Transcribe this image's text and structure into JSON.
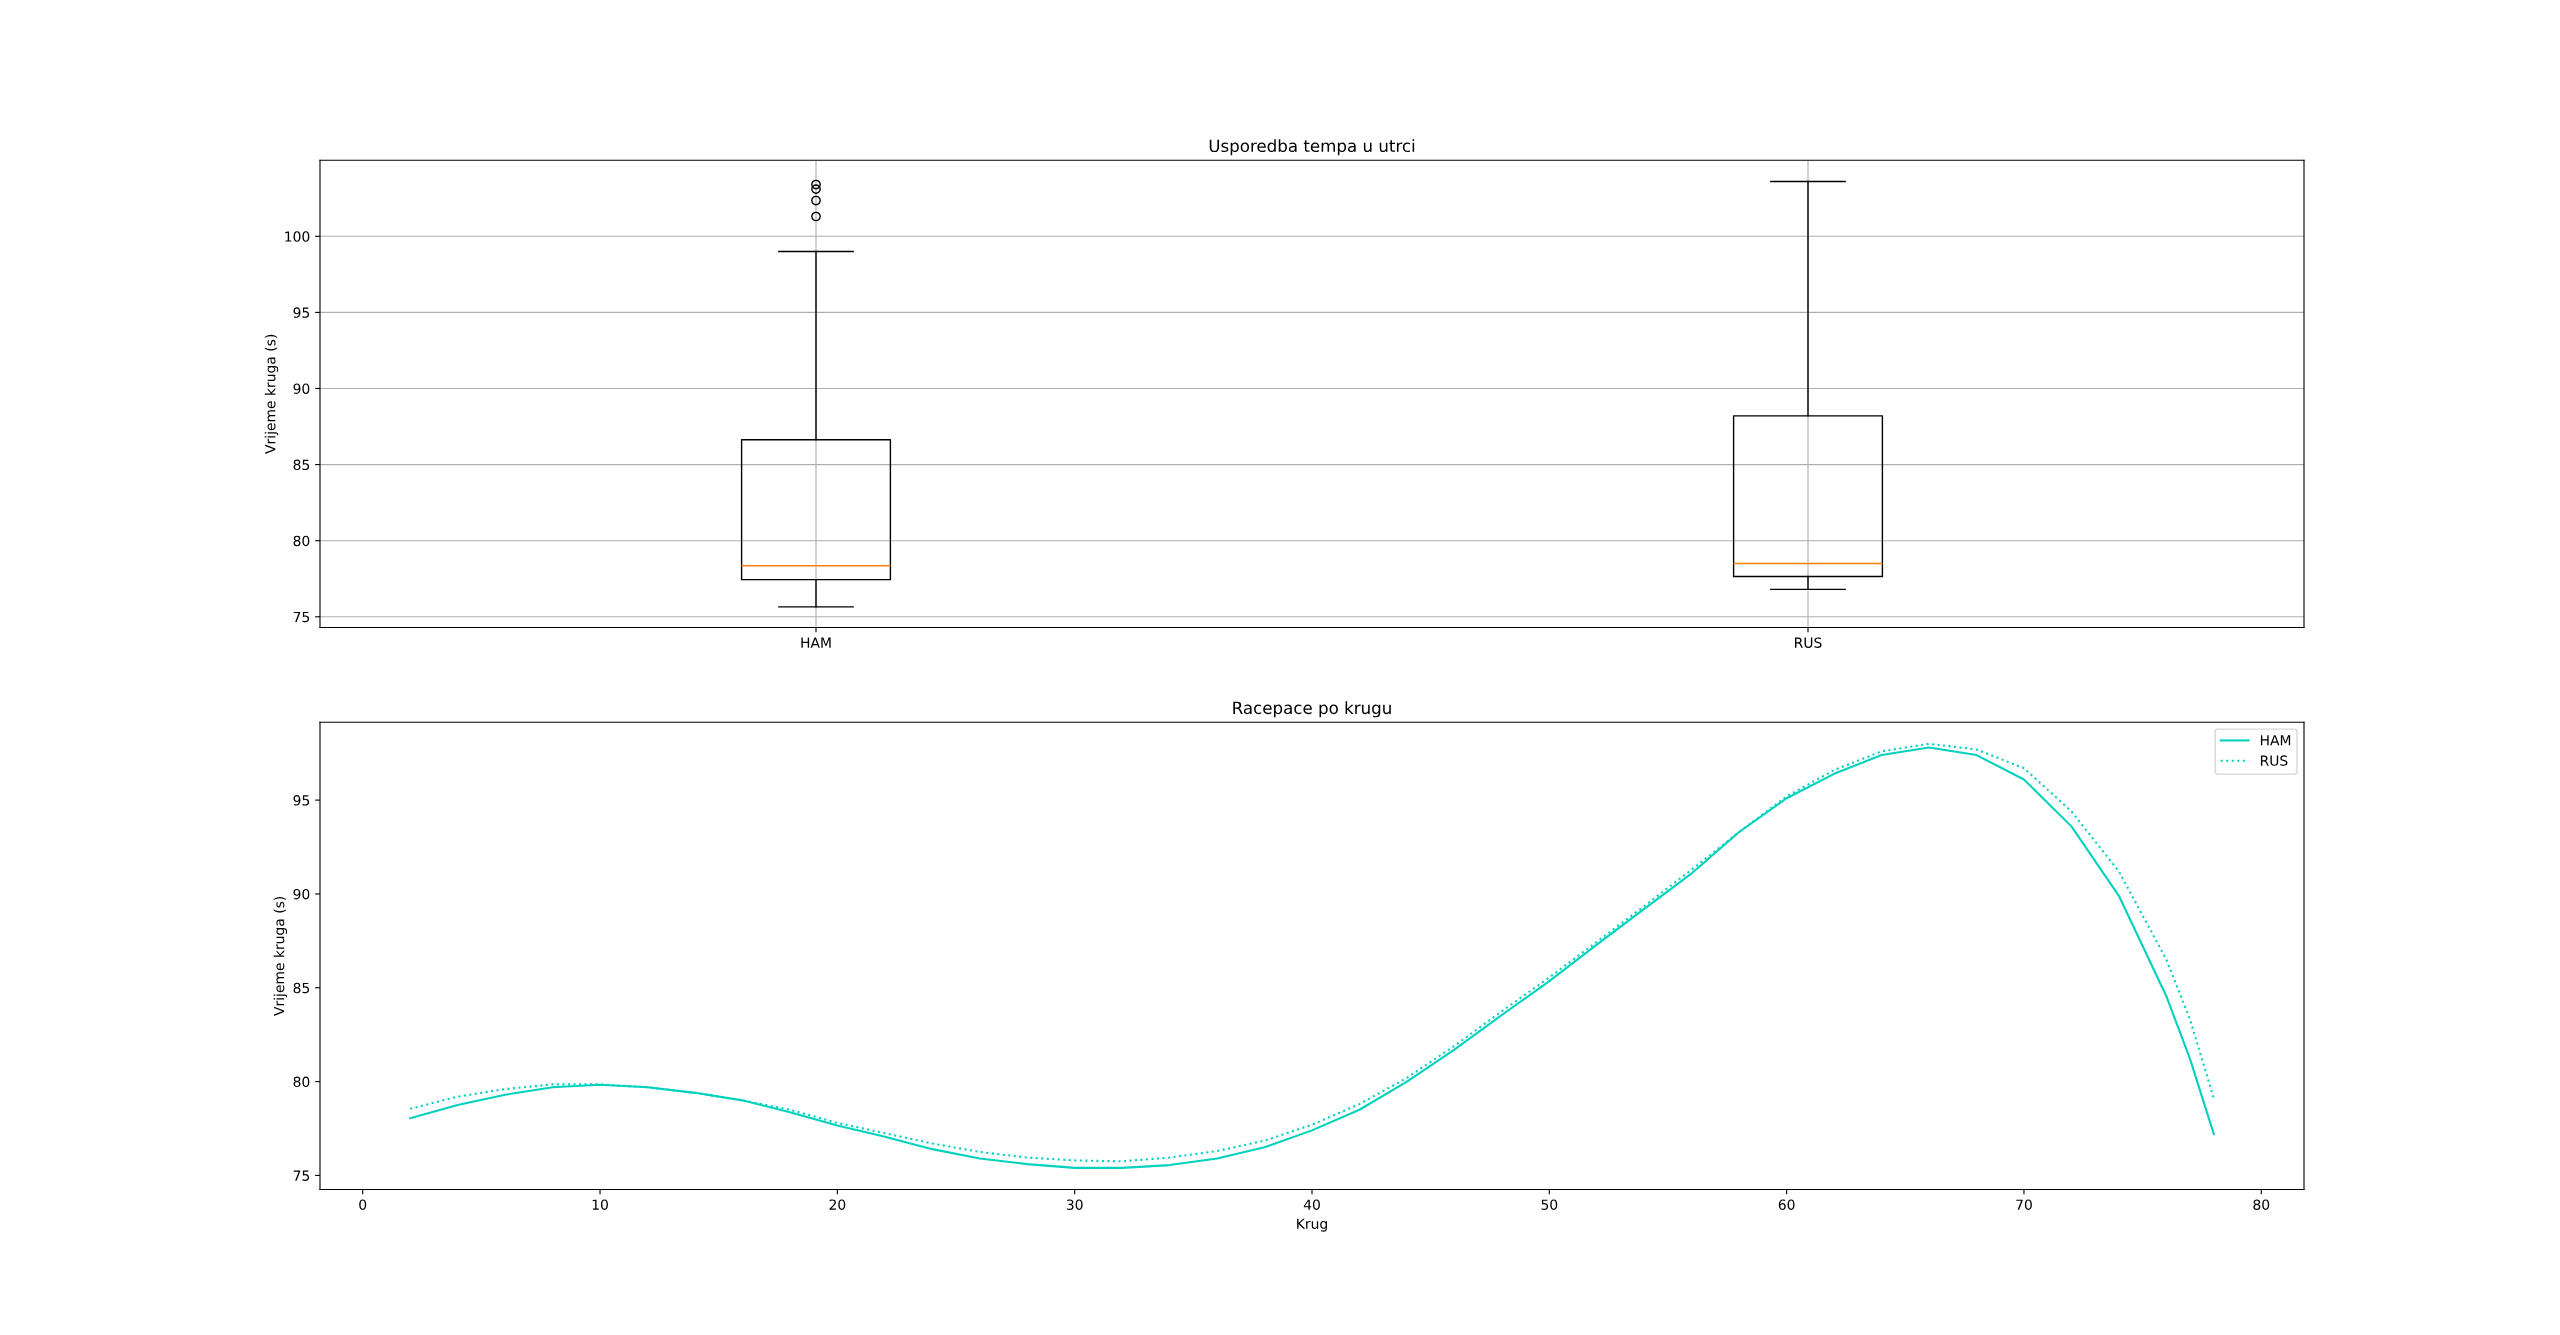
{
  "chart_data": [
    {
      "type": "box",
      "title": "Usporedba tempa u utrci",
      "ylabel": "Vrijeme kruga (s)",
      "categories": [
        "HAM",
        "RUS"
      ],
      "boxes": [
        {
          "low": 75.65,
          "q1": 77.44,
          "median": 78.35,
          "q3": 86.63,
          "high": 99.0,
          "outliers": [
            101.3,
            102.35,
            103.1,
            103.4
          ]
        },
        {
          "low": 76.8,
          "q1": 77.65,
          "median": 78.5,
          "q3": 88.2,
          "high": 103.6
        }
      ],
      "ylim": [
        74.3,
        105.0
      ],
      "yticks": [
        75,
        80,
        85,
        90,
        95,
        100
      ],
      "grid": true
    },
    {
      "type": "line",
      "title": "Racepace po krugu",
      "xlabel": "Krug",
      "ylabel": "Vrijeme kruga (s)",
      "x": [
        2,
        4,
        6,
        8,
        10,
        12,
        14,
        16,
        18,
        20,
        22,
        24,
        26,
        28,
        30,
        32,
        34,
        36,
        38,
        40,
        42,
        44,
        46,
        48,
        50,
        52,
        54,
        56,
        58,
        60,
        62,
        64,
        66,
        68,
        70,
        72,
        74,
        76,
        77,
        78
      ],
      "series": [
        {
          "name": "HAM",
          "color": "#00d2be",
          "line_style": "solid",
          "values": [
            78.05,
            78.75,
            79.3,
            79.7,
            79.83,
            79.7,
            79.4,
            79.0,
            78.37,
            77.66,
            77.06,
            76.4,
            75.9,
            75.6,
            75.4,
            75.4,
            75.55,
            75.9,
            76.5,
            77.4,
            78.5,
            80.0,
            81.7,
            83.55,
            85.35,
            87.3,
            89.2,
            91.1,
            93.3,
            95.1,
            96.4,
            97.4,
            97.8,
            97.4,
            96.1,
            93.6,
            89.9,
            84.55,
            81.2,
            77.2
          ]
        },
        {
          "name": "RUS",
          "color": "#00d2be",
          "line_style": "dotted",
          "values": [
            78.55,
            79.2,
            79.6,
            79.85,
            79.85,
            79.7,
            79.4,
            79.0,
            78.5,
            77.8,
            77.25,
            76.7,
            76.25,
            75.95,
            75.8,
            75.75,
            75.95,
            76.3,
            76.85,
            77.7,
            78.8,
            80.2,
            81.9,
            83.75,
            85.55,
            87.45,
            89.35,
            91.3,
            93.3,
            95.2,
            96.6,
            97.6,
            98.0,
            97.7,
            96.7,
            94.4,
            91.2,
            86.5,
            83.3,
            79.1
          ]
        }
      ],
      "xlim": [
        -1.8,
        81.8
      ],
      "xticks": [
        0,
        10,
        20,
        30,
        40,
        50,
        60,
        70,
        80
      ],
      "ylim": [
        74.25,
        99.15
      ],
      "yticks": [
        75,
        80,
        85,
        90,
        95
      ],
      "legend": "top right"
    }
  ]
}
